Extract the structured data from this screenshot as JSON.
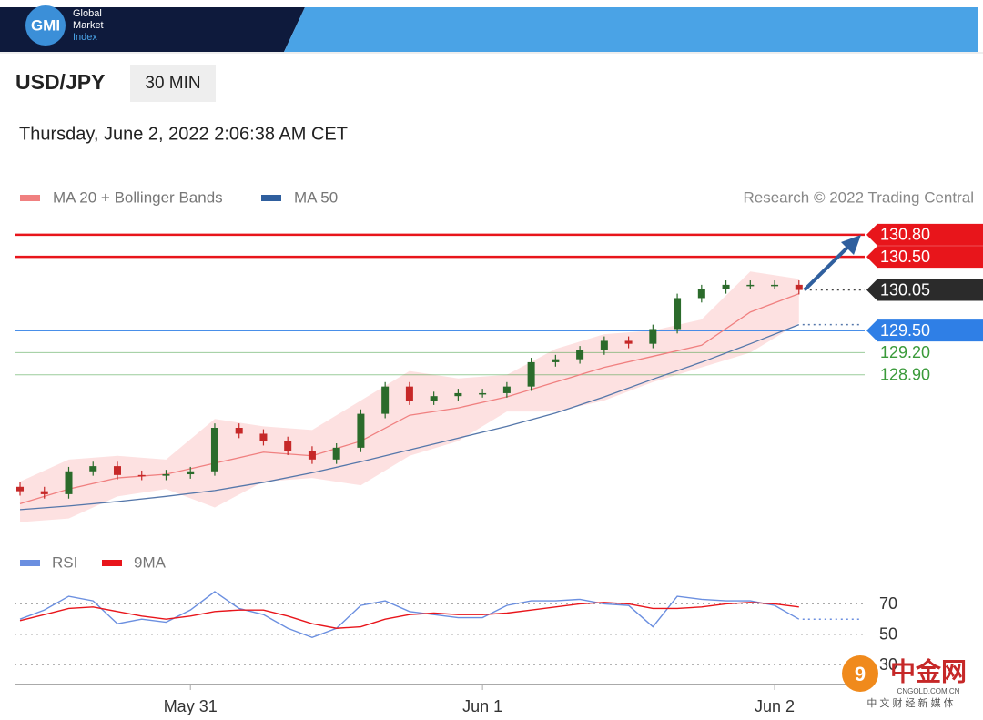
{
  "header": {
    "logo": "GMI",
    "brand": [
      "Global",
      "Market",
      "Index"
    ]
  },
  "symbol": "USD/JPY",
  "timeframe": "30 MIN",
  "timestamp": "Thursday, June 2, 2022 2:06:38 AM CET",
  "credit": "Research © 2022 Trading Central",
  "watermark": {
    "name": "中金网",
    "site": "CNGOLD.COM.CN",
    "tagline": "中 文 财 经 新 媒 体"
  },
  "chart_data": [
    {
      "type": "candlestick",
      "legend": [
        {
          "name": "MA 20 + Bollinger Bands",
          "color": "#f08080"
        },
        {
          "name": "MA 50",
          "color": "#2f5f9e"
        }
      ],
      "x": [
        -14,
        -12,
        -10,
        -8,
        -6,
        -4,
        -2,
        0,
        2,
        4,
        6,
        8,
        10,
        12,
        14,
        16,
        18,
        20,
        22,
        24,
        26,
        28,
        30,
        32,
        34,
        36,
        38,
        40,
        42,
        44,
        46,
        48,
        50
      ],
      "open": [
        127.38,
        127.32,
        127.28,
        127.59,
        127.66,
        127.54,
        127.53,
        127.55,
        127.59,
        128.18,
        128.1,
        128.0,
        127.87,
        127.75,
        127.91,
        128.37,
        128.74,
        128.55,
        128.61,
        128.65,
        128.65,
        128.74,
        129.07,
        129.11,
        129.23,
        129.36,
        129.32,
        129.52,
        129.94,
        130.06,
        130.12,
        130.12,
        130.12
      ],
      "high": [
        127.44,
        127.38,
        127.65,
        127.72,
        127.72,
        127.6,
        127.61,
        127.65,
        128.24,
        128.24,
        128.16,
        128.06,
        127.93,
        127.97,
        128.43,
        128.8,
        128.8,
        128.67,
        128.71,
        128.71,
        128.8,
        129.13,
        129.17,
        129.29,
        129.42,
        129.42,
        129.58,
        130.0,
        130.12,
        130.18,
        130.18,
        130.18,
        130.18
      ],
      "low": [
        127.26,
        127.22,
        127.22,
        127.53,
        127.48,
        127.47,
        127.47,
        127.49,
        127.53,
        128.04,
        127.94,
        127.81,
        127.69,
        127.69,
        127.85,
        128.31,
        128.49,
        128.49,
        128.55,
        128.59,
        128.59,
        128.68,
        129.01,
        129.05,
        129.17,
        129.26,
        129.26,
        129.46,
        129.88,
        130.0,
        130.06,
        130.06,
        129.99
      ],
      "close": [
        127.32,
        127.28,
        127.59,
        127.66,
        127.54,
        127.53,
        127.55,
        127.59,
        128.18,
        128.1,
        128.0,
        127.87,
        127.75,
        127.91,
        128.37,
        128.74,
        128.55,
        128.61,
        128.65,
        128.65,
        128.74,
        129.07,
        129.11,
        129.23,
        129.36,
        129.32,
        129.52,
        129.94,
        130.06,
        130.12,
        130.12,
        130.12,
        130.05
      ],
      "up_color": "#2b6b2b",
      "down_color": "#c62828",
      "overlay_x": [
        -14,
        -10,
        -6,
        -2,
        2,
        6,
        10,
        14,
        18,
        22,
        26,
        30,
        34,
        38,
        42,
        46,
        50
      ],
      "ma20": [
        127.15,
        127.35,
        127.5,
        127.55,
        127.7,
        127.85,
        127.8,
        128.0,
        128.35,
        128.45,
        128.6,
        128.8,
        129.0,
        129.15,
        129.3,
        129.75,
        130.0
      ],
      "bb_upper": [
        127.45,
        127.75,
        127.8,
        127.75,
        128.3,
        128.2,
        128.15,
        128.55,
        128.95,
        128.85,
        128.9,
        129.25,
        129.45,
        129.5,
        129.65,
        130.3,
        130.2
      ],
      "bb_lower": [
        126.9,
        126.95,
        127.25,
        127.35,
        127.1,
        127.45,
        127.5,
        127.4,
        127.8,
        128.0,
        128.4,
        128.4,
        128.55,
        128.8,
        129.0,
        129.2,
        129.6
      ],
      "ma50": [
        127.07,
        127.12,
        127.18,
        127.25,
        127.33,
        127.44,
        127.57,
        127.72,
        127.88,
        128.04,
        128.2,
        128.38,
        128.6,
        128.84,
        129.07,
        129.32,
        129.58
      ],
      "levels": [
        {
          "value": 130.8,
          "label": "130.80",
          "color": "#e8151b",
          "line": "solid",
          "label_box": true
        },
        {
          "value": 130.5,
          "label": "130.50",
          "color": "#e8151b",
          "line": "solid",
          "label_box": true
        },
        {
          "value": 130.05,
          "label": "130.05",
          "color": "#2b2b2b",
          "line": "dotted",
          "label_box": true
        },
        {
          "value": 129.5,
          "label": "129.50",
          "color": "#2f7fe6",
          "line": "solid",
          "label_box": true
        },
        {
          "value": 129.2,
          "label": "129.20",
          "color": "#3a9a3a",
          "line": "solid",
          "label_box": false
        },
        {
          "value": 128.9,
          "label": "128.90",
          "color": "#3a9a3a",
          "line": "solid",
          "label_box": false
        }
      ],
      "xlim": [
        -14.3,
        55.4
      ],
      "ylim": [
        126.76,
        131.02
      ],
      "xticks": [
        {
          "value": 0,
          "label": "May 31"
        },
        {
          "value": 24,
          "label": "Jun 1"
        },
        {
          "value": 48,
          "label": "Jun 2"
        }
      ]
    },
    {
      "type": "line",
      "x": [
        -14,
        -12,
        -10,
        -8,
        -6,
        -4,
        -2,
        0,
        2,
        4,
        6,
        8,
        10,
        12,
        14,
        16,
        18,
        20,
        22,
        24,
        26,
        28,
        30,
        32,
        34,
        36,
        38,
        40,
        42,
        44,
        46,
        48,
        50
      ],
      "series": [
        {
          "name": "RSI",
          "color": "#6b8fe0",
          "values": [
            60,
            66,
            75,
            72,
            57,
            60,
            58,
            66,
            78,
            67,
            63,
            54,
            48,
            54,
            69,
            72,
            65,
            63,
            61,
            61,
            69,
            72,
            72,
            73,
            70,
            69,
            55,
            75,
            73,
            72,
            72,
            69,
            60
          ]
        },
        {
          "name": "9MA",
          "color": "#e8151b",
          "values": [
            59,
            63,
            67,
            68,
            65,
            62,
            60,
            62,
            65,
            66,
            66,
            62,
            57,
            54,
            55,
            60,
            63,
            64,
            63,
            63,
            64,
            66,
            68,
            70,
            71,
            70,
            67,
            67,
            68,
            70,
            71,
            70,
            68
          ]
        }
      ],
      "xlim": [
        -14.3,
        55.4
      ],
      "ylim": [
        21.3,
        84
      ],
      "yticks": [
        30,
        50,
        70
      ]
    }
  ]
}
